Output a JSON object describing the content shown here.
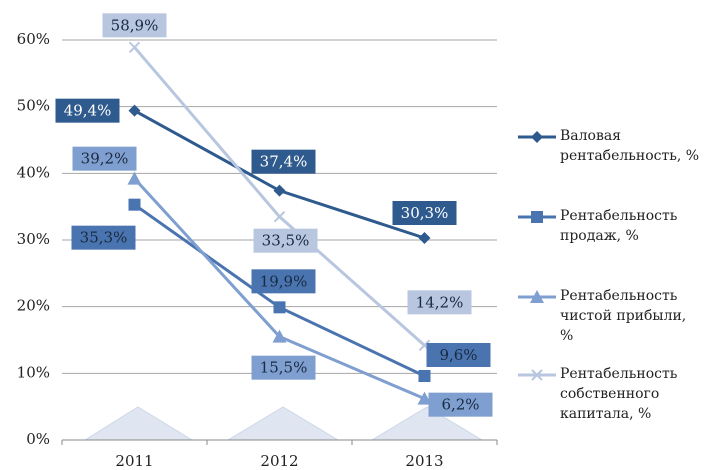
{
  "chart_data": {
    "type": "line",
    "categories": [
      "2011",
      "2012",
      "2013"
    ],
    "ylim": [
      0,
      60
    ],
    "yticks": [
      {
        "value": 0,
        "label": "0%"
      },
      {
        "value": 10,
        "label": "10%"
      },
      {
        "value": 20,
        "label": "20%"
      },
      {
        "value": 30,
        "label": "30%"
      },
      {
        "value": 40,
        "label": "40%"
      },
      {
        "value": 50,
        "label": "50%"
      },
      {
        "value": 60,
        "label": "60%"
      }
    ],
    "grid": true,
    "legend": "right",
    "series": [
      {
        "name": "Валовая рентабельность, %",
        "color": "#2e5a8e",
        "marker": "diamond",
        "values": [
          49.4,
          37.4,
          30.3
        ],
        "value_labels": [
          "49,4%",
          "37,4%",
          "30,3%"
        ]
      },
      {
        "name": "Рентабельность продаж, %",
        "color": "#4a74b0",
        "marker": "square",
        "values": [
          35.3,
          19.9,
          9.6
        ],
        "value_labels": [
          "35,3%",
          "19,9%",
          "9,6%"
        ]
      },
      {
        "name": "Рентабельность чистой прибыли, %",
        "color": "#7f9fd0",
        "marker": "triangle",
        "values": [
          39.2,
          15.5,
          6.2
        ],
        "value_labels": [
          "39,2%",
          "15,5%",
          "6,2%"
        ]
      },
      {
        "name": "Рентабельность собственного капитала, %",
        "color": "#b8c6e0",
        "marker": "x",
        "values": [
          58.9,
          33.5,
          14.2
        ],
        "value_labels": [
          "58,9%",
          "33,5%",
          "14,2%"
        ]
      }
    ]
  }
}
